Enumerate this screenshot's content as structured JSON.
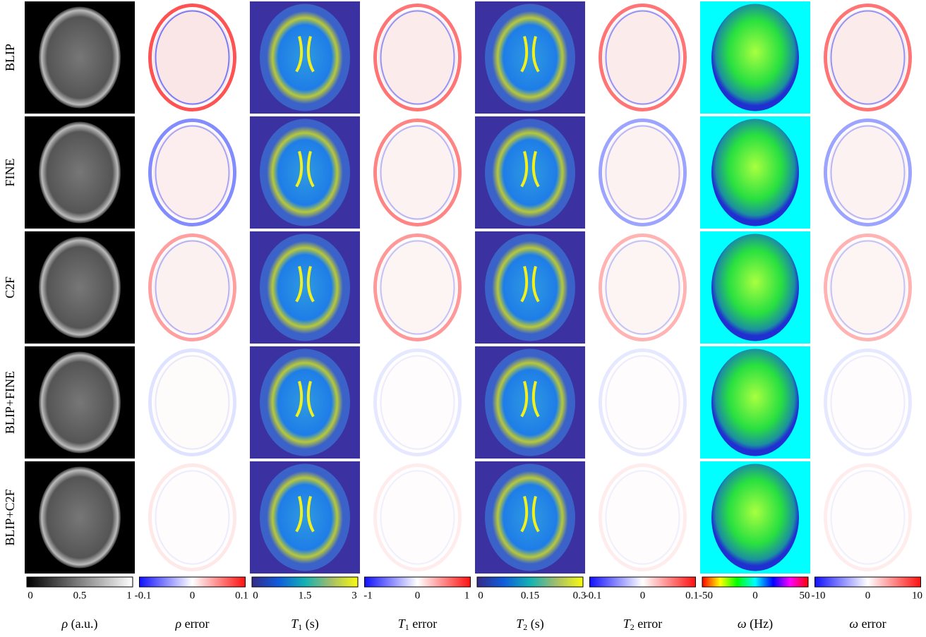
{
  "rows": [
    "BLIP",
    "FINE",
    "C2F",
    "BLIP+FINE",
    "BLIP+C2F"
  ],
  "columns": [
    {
      "symbol": "ρ",
      "suffix": " (a.u.)",
      "ticks": [
        "0",
        "0.5",
        "1"
      ]
    },
    {
      "symbol": "ρ",
      "suffix": " error",
      "ticks": [
        "-0.1",
        "0",
        "0.1"
      ]
    },
    {
      "symbol": "T",
      "sub": "1",
      "suffix": " (s)",
      "ticks": [
        "0",
        "1.5",
        "3"
      ]
    },
    {
      "symbol": "T",
      "sub": "1",
      "suffix": " error",
      "ticks": [
        "-1",
        "0",
        "1"
      ]
    },
    {
      "symbol": "T",
      "sub": "2",
      "suffix": " (s)",
      "ticks": [
        "0",
        "0.15",
        "0.3"
      ]
    },
    {
      "symbol": "T",
      "sub": "2",
      "suffix": " error",
      "ticks": [
        "-0.1",
        "0",
        "0.1"
      ]
    },
    {
      "symbol": "ω",
      "suffix": " (Hz)",
      "ticks": [
        "-50",
        "0",
        "50"
      ]
    },
    {
      "symbol": "ω",
      "suffix": " error",
      "ticks": [
        "-10",
        "0",
        "10"
      ]
    }
  ]
}
